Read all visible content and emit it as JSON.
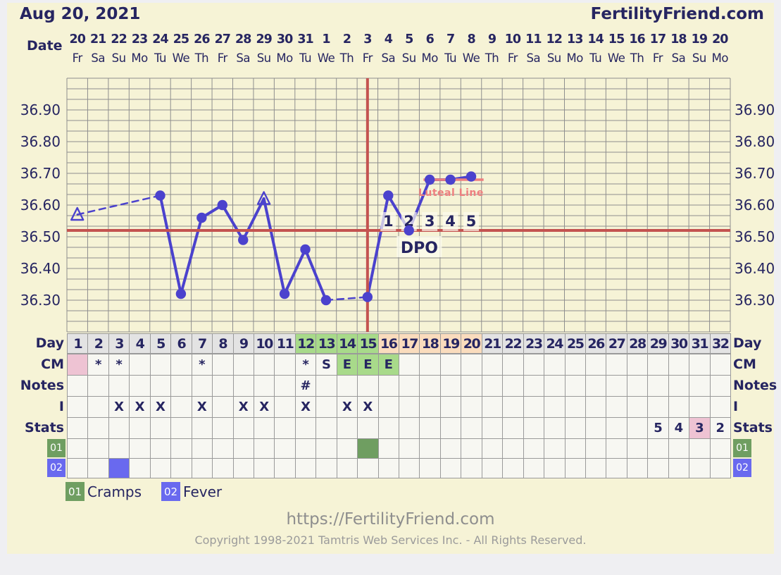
{
  "header": {
    "title": "Aug 20, 2021",
    "brand": "FertilityFriend.com"
  },
  "date_row": {
    "label": "Date",
    "dates": [
      "20",
      "21",
      "22",
      "23",
      "24",
      "25",
      "26",
      "27",
      "28",
      "29",
      "30",
      "31",
      "1",
      "2",
      "3",
      "4",
      "5",
      "6",
      "7",
      "8",
      "9",
      "10",
      "11",
      "12",
      "13",
      "14",
      "15",
      "16",
      "17",
      "18",
      "19",
      "20"
    ],
    "weekdays": [
      "Fr",
      "Sa",
      "Su",
      "Mo",
      "Tu",
      "We",
      "Th",
      "Fr",
      "Sa",
      "Su",
      "Mo",
      "Tu",
      "We",
      "Th",
      "Fr",
      "Sa",
      "Su",
      "Mo",
      "Tu",
      "We",
      "Th",
      "Fr",
      "Sa",
      "Su",
      "Mo",
      "Tu",
      "We",
      "Th",
      "Fr",
      "Sa",
      "Su",
      "Mo"
    ]
  },
  "chart_data": {
    "type": "line",
    "title": "Basal body temperature chart (Celsius)",
    "y_min": 36.2,
    "y_max": 37.0,
    "x_min": 1,
    "x_max": 32,
    "grid": true,
    "y_ticks": [
      "36.90",
      "36.80",
      "36.70",
      "36.60",
      "36.50",
      "36.40",
      "36.30"
    ],
    "y_tick_values": [
      36.9,
      36.8,
      36.7,
      36.6,
      36.5,
      36.4,
      36.3
    ],
    "series": [
      {
        "name": "temperature",
        "points": [
          {
            "day": 1,
            "temp": 36.57,
            "marker": "open-triangle",
            "connect": "none"
          },
          {
            "day": 5,
            "temp": 36.63,
            "marker": "dot",
            "connect": "dashed"
          },
          {
            "day": 6,
            "temp": 36.32,
            "marker": "dot",
            "connect": "solid"
          },
          {
            "day": 7,
            "temp": 36.56,
            "marker": "dot",
            "connect": "solid"
          },
          {
            "day": 8,
            "temp": 36.6,
            "marker": "dot",
            "connect": "solid"
          },
          {
            "day": 9,
            "temp": 36.49,
            "marker": "dot",
            "connect": "solid"
          },
          {
            "day": 10,
            "temp": 36.62,
            "marker": "open-triangle",
            "connect": "solid"
          },
          {
            "day": 11,
            "temp": 36.32,
            "marker": "dot",
            "connect": "solid"
          },
          {
            "day": 12,
            "temp": 36.46,
            "marker": "dot",
            "connect": "solid"
          },
          {
            "day": 13,
            "temp": 36.3,
            "marker": "dot",
            "connect": "solid"
          },
          {
            "day": 15,
            "temp": 36.31,
            "marker": "dot",
            "connect": "dashed"
          },
          {
            "day": 16,
            "temp": 36.63,
            "marker": "dot",
            "connect": "solid"
          },
          {
            "day": 17,
            "temp": 36.52,
            "marker": "dot",
            "connect": "solid"
          },
          {
            "day": 18,
            "temp": 36.68,
            "marker": "dot",
            "connect": "solid"
          },
          {
            "day": 19,
            "temp": 36.68,
            "marker": "dot",
            "connect": "solid"
          },
          {
            "day": 20,
            "temp": 36.69,
            "marker": "dot",
            "connect": "solid"
          }
        ]
      }
    ],
    "coverline_temp": 36.52,
    "ovulation_day": 15,
    "luteal_line": {
      "temp": 36.68,
      "label": "Luteal Line",
      "from_day": 17.7,
      "to_day": 20.6
    },
    "dpo": {
      "label": "DPO",
      "numbers": [
        "1",
        "2",
        "3",
        "4",
        "5"
      ],
      "days": [
        16,
        17,
        18,
        19,
        20
      ]
    }
  },
  "table": {
    "day_row": {
      "label": "Day",
      "green_days": [
        12,
        13,
        14,
        15
      ],
      "peach_days": [
        16,
        17,
        18,
        19,
        20
      ]
    },
    "cm_row": {
      "label": "CM",
      "entries": [
        {
          "day": 1,
          "text": "",
          "bg": "pink"
        },
        {
          "day": 2,
          "text": "*"
        },
        {
          "day": 3,
          "text": "*"
        },
        {
          "day": 7,
          "text": "*"
        },
        {
          "day": 12,
          "text": "*"
        },
        {
          "day": 13,
          "text": "S"
        },
        {
          "day": 14,
          "text": "E",
          "bg": "green"
        },
        {
          "day": 15,
          "text": "E",
          "bg": "green"
        },
        {
          "day": 16,
          "text": "E",
          "bg": "green"
        }
      ]
    },
    "notes_row": {
      "label": "Notes",
      "entries": [
        {
          "day": 12,
          "text": "#"
        }
      ]
    },
    "intercourse_row": {
      "label": "I",
      "entries": [
        {
          "day": 3,
          "text": "X"
        },
        {
          "day": 4,
          "text": "X"
        },
        {
          "day": 5,
          "text": "X"
        },
        {
          "day": 7,
          "text": "X"
        },
        {
          "day": 9,
          "text": "X"
        },
        {
          "day": 10,
          "text": "X"
        },
        {
          "day": 12,
          "text": "X"
        },
        {
          "day": 14,
          "text": "X"
        },
        {
          "day": 15,
          "text": "X"
        }
      ]
    },
    "stats_row": {
      "label": "Stats",
      "entries": [
        {
          "day": 29,
          "text": "5"
        },
        {
          "day": 30,
          "text": "4"
        },
        {
          "day": 31,
          "text": "3",
          "bg": "pink"
        },
        {
          "day": 32,
          "text": "2"
        }
      ]
    },
    "custom_rows": [
      {
        "code": "01",
        "color": "#6f9e61",
        "filled_days": [
          15
        ]
      },
      {
        "code": "02",
        "color": "#6969ef",
        "filled_days": [
          3
        ]
      }
    ]
  },
  "legend": {
    "items": [
      {
        "code": "01",
        "label": "Cramps",
        "color": "#6f9e61"
      },
      {
        "code": "02",
        "label": "Fever",
        "color": "#6969ef"
      }
    ]
  },
  "footer": {
    "url": "https://FertilityFriend.com",
    "copyright": "Copyright 1998-2021 Tamtris Web Services Inc. - All Rights Reserved."
  },
  "colors": {
    "panel_background": "#f6f3d6",
    "page_margin": "#efeff2",
    "text_navy": "#262561",
    "grid_line": "#8e8e8e",
    "temperature_line": "#4b42cd",
    "cover_line_red": "#c45350",
    "luteal_salmon": "#ee7f7f",
    "fertile_green": "#a8da8a",
    "post_ovulation_peach": "#fadcbd",
    "menses_pink": "#eec3d3",
    "day_header_gray": "#e3e3e3",
    "table_cell_bg": "#f7f7f2",
    "footer_gray": "#8e8e8e"
  }
}
